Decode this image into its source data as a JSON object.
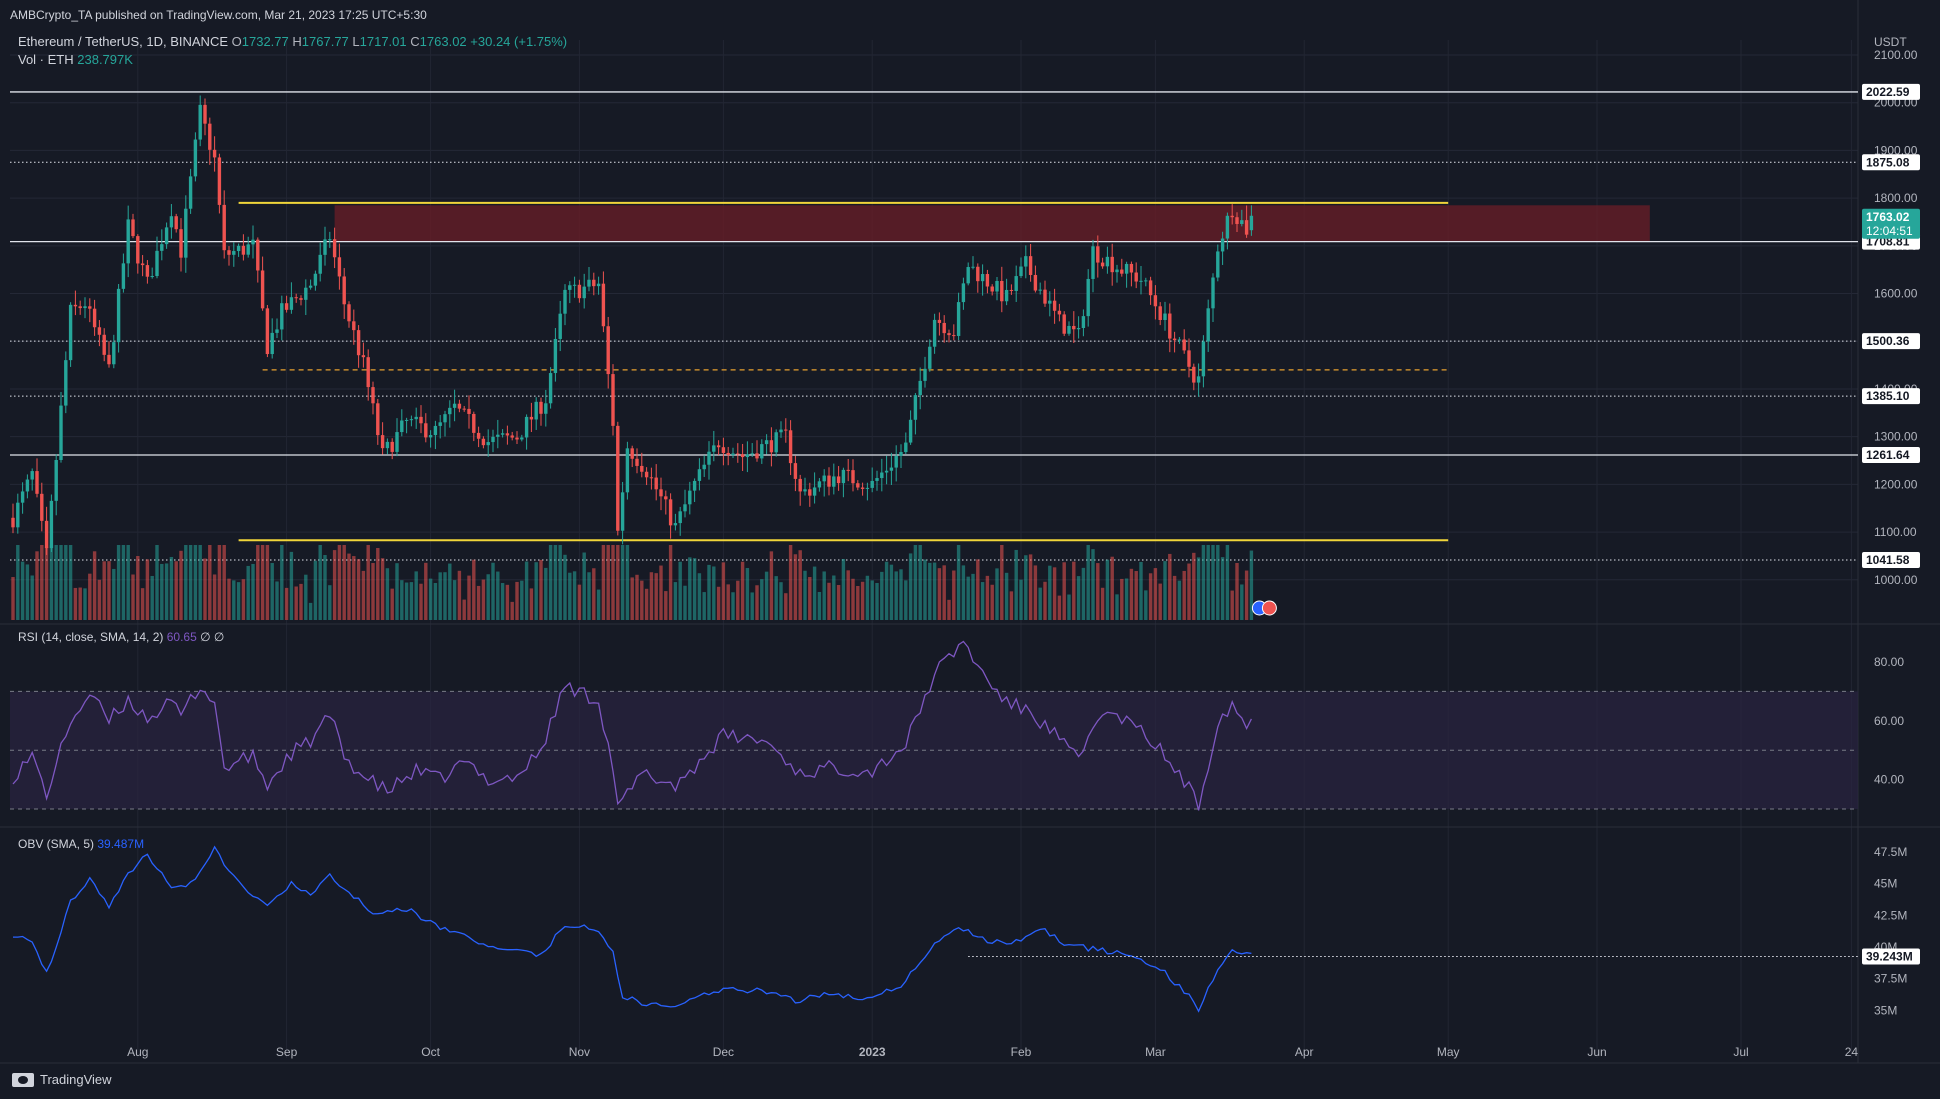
{
  "publisher": "AMBCrypto_TA published on TradingView.com, Mar 21, 2023 17:25 UTC+5:30",
  "header": {
    "symbol": "Ethereum / TetherUS, 1D, BINANCE",
    "o_label": "O",
    "o": "1732.77",
    "h_label": "H",
    "h": "1767.77",
    "l_label": "L",
    "l": "1717.01",
    "c_label": "C",
    "c": "1763.02",
    "change": "+30.24 (+1.75%)",
    "vol_label": "Vol · ETH",
    "vol": "238.797K"
  },
  "currency": "USDT",
  "rsi_label": {
    "text": "RSI (14, close, SMA, 14, 2)",
    "value": "60.65",
    "extra": "∅ ∅"
  },
  "obv_label": {
    "text": "OBV (SMA, 5)",
    "value": "39.487M"
  },
  "footer": {
    "brand": "TradingView"
  },
  "colors": {
    "background": "#161a25",
    "up": "#26a69a",
    "down": "#ef5350",
    "level_yellow": "#f0d53a",
    "zone": "#6b1d27",
    "rsi_line": "#7e57c2",
    "rsi_band": "#2a2340",
    "obv_line": "#2962ff",
    "dashed_orange": "#e5a02f"
  },
  "chart_data": [
    {
      "type": "candlestick",
      "name": "price",
      "xlabels": [
        "Aug",
        "Sep",
        "Oct",
        "Nov",
        "Dec",
        "2023",
        "Feb",
        "Mar",
        "Apr",
        "May",
        "Jun",
        "Jul",
        "24"
      ],
      "y_ticks": [
        "2100.00",
        "2000.00",
        "1900.00",
        "1800.00",
        "1700.00",
        "1600.00",
        "1500.00",
        "1400.00",
        "1300.00",
        "1200.00",
        "1100.00",
        "1000.00"
      ],
      "ylim": [
        945,
        2125
      ],
      "date_range": [
        "2022-07-06",
        "2023-03-21"
      ],
      "anchors": [
        [
          "2022-07-06",
          1130
        ],
        [
          "2022-07-10",
          1220
        ],
        [
          "2022-07-13",
          1050
        ],
        [
          "2022-07-18",
          1560
        ],
        [
          "2022-07-21",
          1580
        ],
        [
          "2022-07-26",
          1440
        ],
        [
          "2022-07-30",
          1740
        ],
        [
          "2022-08-03",
          1620
        ],
        [
          "2022-08-08",
          1780
        ],
        [
          "2022-08-10",
          1690
        ],
        [
          "2022-08-14",
          1980
        ],
        [
          "2022-08-17",
          1880
        ],
        [
          "2022-08-19",
          1680
        ],
        [
          "2022-08-25",
          1700
        ],
        [
          "2022-08-28",
          1490
        ],
        [
          "2022-08-31",
          1560
        ],
        [
          "2022-09-06",
          1620
        ],
        [
          "2022-09-10",
          1720
        ],
        [
          "2022-09-13",
          1580
        ],
        [
          "2022-09-17",
          1450
        ],
        [
          "2022-09-21",
          1260
        ],
        [
          "2022-09-26",
          1330
        ],
        [
          "2022-10-02",
          1310
        ],
        [
          "2022-10-06",
          1360
        ],
        [
          "2022-10-13",
          1290
        ],
        [
          "2022-10-19",
          1300
        ],
        [
          "2022-10-25",
          1380
        ],
        [
          "2022-10-29",
          1600
        ],
        [
          "2022-11-05",
          1620
        ],
        [
          "2022-11-08",
          1330
        ],
        [
          "2022-11-09",
          1100
        ],
        [
          "2022-11-11",
          1280
        ],
        [
          "2022-11-15",
          1230
        ],
        [
          "2022-11-21",
          1110
        ],
        [
          "2022-11-25",
          1200
        ],
        [
          "2022-11-30",
          1290
        ],
        [
          "2022-12-05",
          1260
        ],
        [
          "2022-12-14",
          1300
        ],
        [
          "2022-12-17",
          1180
        ],
        [
          "2022-12-25",
          1220
        ],
        [
          "2023-01-01",
          1200
        ],
        [
          "2023-01-08",
          1280
        ],
        [
          "2023-01-14",
          1550
        ],
        [
          "2023-01-18",
          1520
        ],
        [
          "2023-01-21",
          1660
        ],
        [
          "2023-01-29",
          1590
        ],
        [
          "2023-02-02",
          1660
        ],
        [
          "2023-02-09",
          1540
        ],
        [
          "2023-02-13",
          1510
        ],
        [
          "2023-02-16",
          1690
        ],
        [
          "2023-02-22",
          1650
        ],
        [
          "2023-02-26",
          1630
        ],
        [
          "2023-03-02",
          1560
        ],
        [
          "2023-03-09",
          1430
        ],
        [
          "2023-03-10",
          1420
        ],
        [
          "2023-03-14",
          1700
        ],
        [
          "2023-03-17",
          1780
        ],
        [
          "2023-03-20",
          1735
        ],
        [
          "2023-03-21",
          1763.02
        ]
      ],
      "last_price": 1763.02,
      "countdown": "12:04:51",
      "horizontal_levels": [
        {
          "value": 2022.59,
          "label": "2022.59",
          "style": "solid"
        },
        {
          "value": 1875.08,
          "label": "1875.08",
          "style": "dotted"
        },
        {
          "value": 1708.81,
          "label": "1708.81",
          "style": "solid"
        },
        {
          "value": 1500.36,
          "label": "1500.36",
          "style": "dotted"
        },
        {
          "value": 1385.1,
          "label": "1385.10",
          "style": "dotted"
        },
        {
          "value": 1261.64,
          "label": "1261.64",
          "style": "solid"
        },
        {
          "value": 1041.58,
          "label": "1041.58",
          "style": "dotted"
        }
      ],
      "yellow_levels": [
        {
          "value": 1790,
          "from": "2022-08-22",
          "to": "2023-05-01"
        },
        {
          "value": 1083,
          "from": "2022-08-22",
          "to": "2023-05-01"
        }
      ],
      "zone": {
        "from": "2022-09-11",
        "to": "2023-06-12",
        "low": 1708,
        "high": 1785
      },
      "dashed_level": {
        "value": 1440,
        "from": "2022-08-27",
        "to": "2023-05-01"
      }
    },
    {
      "type": "line",
      "name": "RSI",
      "y_ticks": [
        "80.00",
        "60.00",
        "40.00"
      ],
      "ylim": [
        27,
        89
      ],
      "bands": [
        70,
        50,
        30
      ],
      "anchors": [
        [
          "2022-07-06",
          41
        ],
        [
          "2022-07-10",
          48
        ],
        [
          "2022-07-13",
          35
        ],
        [
          "2022-07-18",
          60
        ],
        [
          "2022-07-22",
          69
        ],
        [
          "2022-07-26",
          60
        ],
        [
          "2022-07-30",
          67
        ],
        [
          "2022-08-03",
          61
        ],
        [
          "2022-08-08",
          66
        ],
        [
          "2022-08-10",
          62
        ],
        [
          "2022-08-14",
          72
        ],
        [
          "2022-08-17",
          66
        ],
        [
          "2022-08-19",
          44
        ],
        [
          "2022-08-25",
          48
        ],
        [
          "2022-08-28",
          38
        ],
        [
          "2022-09-02",
          49
        ],
        [
          "2022-09-06",
          53
        ],
        [
          "2022-09-10",
          62
        ],
        [
          "2022-09-13",
          48
        ],
        [
          "2022-09-17",
          41
        ],
        [
          "2022-09-22",
          36
        ],
        [
          "2022-09-28",
          43
        ],
        [
          "2022-10-03",
          40
        ],
        [
          "2022-10-08",
          46
        ],
        [
          "2022-10-13",
          40
        ],
        [
          "2022-10-19",
          41
        ],
        [
          "2022-10-24",
          50
        ],
        [
          "2022-10-29",
          72
        ],
        [
          "2022-11-05",
          67
        ],
        [
          "2022-11-08",
          44
        ],
        [
          "2022-11-09",
          30
        ],
        [
          "2022-11-14",
          42
        ],
        [
          "2022-11-21",
          38
        ],
        [
          "2022-11-26",
          46
        ],
        [
          "2022-12-01",
          55
        ],
        [
          "2022-12-10",
          53
        ],
        [
          "2022-12-17",
          42
        ],
        [
          "2022-12-23",
          44
        ],
        [
          "2023-01-01",
          43
        ],
        [
          "2023-01-08",
          52
        ],
        [
          "2023-01-14",
          76
        ],
        [
          "2023-01-20",
          87
        ],
        [
          "2023-01-24",
          76
        ],
        [
          "2023-01-29",
          66
        ],
        [
          "2023-02-02",
          64
        ],
        [
          "2023-02-09",
          54
        ],
        [
          "2023-02-13",
          46
        ],
        [
          "2023-02-17",
          62
        ],
        [
          "2023-02-22",
          61
        ],
        [
          "2023-02-27",
          55
        ],
        [
          "2023-03-02",
          50
        ],
        [
          "2023-03-08",
          37
        ],
        [
          "2023-03-10",
          31
        ],
        [
          "2023-03-14",
          60
        ],
        [
          "2023-03-17",
          66
        ],
        [
          "2023-03-20",
          58
        ],
        [
          "2023-03-21",
          60.65
        ]
      ]
    },
    {
      "type": "line",
      "name": "OBV",
      "y_ticks": [
        "47.5M",
        "45M",
        "42.5M",
        "40M",
        "37.5M",
        "35M"
      ],
      "ylim": [
        33.9,
        48.6
      ],
      "last_value": "39.243M",
      "level": {
        "value": 39.243,
        "from": "2023-01-21",
        "to": "2023-03-21"
      },
      "anchors": [
        [
          "2022-07-06",
          41.0
        ],
        [
          "2022-07-10",
          40.6
        ],
        [
          "2022-07-13",
          37.9
        ],
        [
          "2022-07-18",
          43.6
        ],
        [
          "2022-07-22",
          45.5
        ],
        [
          "2022-07-26",
          43.3
        ],
        [
          "2022-07-30",
          45.8
        ],
        [
          "2022-08-03",
          47.3
        ],
        [
          "2022-08-08",
          44.8
        ],
        [
          "2022-08-12",
          45.0
        ],
        [
          "2022-08-17",
          47.7
        ],
        [
          "2022-08-22",
          45.0
        ],
        [
          "2022-08-28",
          43.4
        ],
        [
          "2022-09-02",
          45.0
        ],
        [
          "2022-09-06",
          44.0
        ],
        [
          "2022-09-10",
          45.8
        ],
        [
          "2022-09-13",
          44.5
        ],
        [
          "2022-09-19",
          42.8
        ],
        [
          "2022-09-26",
          43.0
        ],
        [
          "2022-10-03",
          41.5
        ],
        [
          "2022-10-08",
          40.9
        ],
        [
          "2022-10-13",
          40.1
        ],
        [
          "2022-10-19",
          39.8
        ],
        [
          "2022-10-24",
          39.4
        ],
        [
          "2022-10-29",
          41.7
        ],
        [
          "2022-11-04",
          41.5
        ],
        [
          "2022-11-08",
          39.5
        ],
        [
          "2022-11-10",
          36.2
        ],
        [
          "2022-11-14",
          35.5
        ],
        [
          "2022-11-21",
          35.3
        ],
        [
          "2022-11-27",
          36.3
        ],
        [
          "2022-12-02",
          36.6
        ],
        [
          "2022-12-10",
          36.5
        ],
        [
          "2022-12-16",
          35.7
        ],
        [
          "2022-12-23",
          36.4
        ],
        [
          "2022-12-30",
          35.9
        ],
        [
          "2023-01-07",
          37.0
        ],
        [
          "2023-01-14",
          40.2
        ],
        [
          "2023-01-19",
          41.7
        ],
        [
          "2023-01-25",
          40.4
        ],
        [
          "2023-01-31",
          40.4
        ],
        [
          "2023-02-05",
          41.6
        ],
        [
          "2023-02-10",
          40.3
        ],
        [
          "2023-02-15",
          39.9
        ],
        [
          "2023-02-20",
          39.6
        ],
        [
          "2023-02-26",
          39.0
        ],
        [
          "2023-03-02",
          38.3
        ],
        [
          "2023-03-08",
          36.1
        ],
        [
          "2023-03-10",
          35.0
        ],
        [
          "2023-03-14",
          38.3
        ],
        [
          "2023-03-17",
          39.8
        ],
        [
          "2023-03-21",
          39.49
        ]
      ]
    }
  ]
}
